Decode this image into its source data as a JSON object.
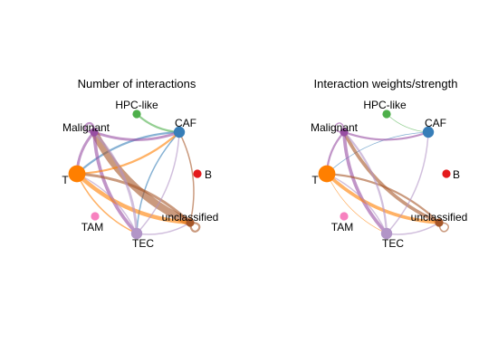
{
  "panels": [
    {
      "title": "Number of interactions",
      "nodes": [
        {
          "id": "hpc",
          "label": "HPC-like",
          "color": "#4daf4a",
          "size": 1
        },
        {
          "id": "caf",
          "label": "CAF",
          "color": "#377eb8",
          "size": 2
        },
        {
          "id": "mal",
          "label": "Malignant",
          "color": "#984ea3",
          "size": 1
        },
        {
          "id": "b",
          "label": "B",
          "color": "#e41a1c",
          "size": 1
        },
        {
          "id": "t",
          "label": "T",
          "color": "#ff7f00",
          "size": 4
        },
        {
          "id": "uncl",
          "label": "unclassified",
          "color": "#a65628",
          "size": 1
        },
        {
          "id": "tam",
          "label": "TAM",
          "color": "#f781bf",
          "size": 1
        },
        {
          "id": "tec",
          "label": "TEC",
          "color": "#b295c7",
          "size": 2
        }
      ],
      "edges": [
        {
          "from": "hpc",
          "to": "caf",
          "weight": 3,
          "color": "#4daf4a"
        },
        {
          "from": "caf",
          "to": "t",
          "weight": 3,
          "color": "#377eb8"
        },
        {
          "from": "caf",
          "to": "tec",
          "weight": 2,
          "color": "#377eb8"
        },
        {
          "from": "mal",
          "to": "caf",
          "weight": 4,
          "color": "#984ea3"
        },
        {
          "from": "mal",
          "to": "uncl",
          "weight": 11,
          "color": "#a65628"
        },
        {
          "from": "mal",
          "to": "tec",
          "weight": 5,
          "color": "#984ea3"
        },
        {
          "from": "mal",
          "to": "t",
          "weight": 4,
          "color": "#984ea3"
        },
        {
          "from": "t",
          "to": "caf",
          "weight": 3,
          "color": "#ff7f00"
        },
        {
          "from": "t",
          "to": "uncl",
          "weight": 6,
          "color": "#ff7f00"
        },
        {
          "from": "t",
          "to": "tec",
          "weight": 2,
          "color": "#ff7f00"
        },
        {
          "from": "uncl",
          "to": "t",
          "weight": 4,
          "color": "#a65628"
        },
        {
          "from": "uncl",
          "to": "caf",
          "weight": 2,
          "color": "#a65628"
        },
        {
          "from": "tec",
          "to": "caf",
          "weight": 2,
          "color": "#b295c7"
        },
        {
          "from": "tec",
          "to": "mal",
          "weight": 4,
          "color": "#b295c7"
        },
        {
          "from": "tec",
          "to": "t",
          "weight": 2,
          "color": "#b295c7"
        },
        {
          "from": "tec",
          "to": "uncl",
          "weight": 2,
          "color": "#b295c7"
        },
        {
          "from": "mal",
          "to": "mal",
          "weight": 3,
          "color": "#984ea3"
        },
        {
          "from": "uncl",
          "to": "uncl",
          "weight": 3,
          "color": "#a65628"
        }
      ]
    },
    {
      "title": "Interaction weights/strength",
      "nodes": [
        {
          "id": "hpc",
          "label": "HPC-like",
          "color": "#4daf4a",
          "size": 1
        },
        {
          "id": "caf",
          "label": "CAF",
          "color": "#377eb8",
          "size": 2
        },
        {
          "id": "mal",
          "label": "Malignant",
          "color": "#984ea3",
          "size": 1
        },
        {
          "id": "b",
          "label": "B",
          "color": "#e41a1c",
          "size": 1
        },
        {
          "id": "t",
          "label": "T",
          "color": "#ff7f00",
          "size": 4
        },
        {
          "id": "uncl",
          "label": "unclassified",
          "color": "#a65628",
          "size": 1
        },
        {
          "id": "tam",
          "label": "TAM",
          "color": "#f781bf",
          "size": 1
        },
        {
          "id": "tec",
          "label": "TEC",
          "color": "#b295c7",
          "size": 2
        }
      ],
      "edges": [
        {
          "from": "hpc",
          "to": "caf",
          "weight": 1,
          "color": "#4daf4a"
        },
        {
          "from": "caf",
          "to": "t",
          "weight": 1,
          "color": "#377eb8"
        },
        {
          "from": "mal",
          "to": "caf",
          "weight": 3,
          "color": "#984ea3"
        },
        {
          "from": "mal",
          "to": "uncl",
          "weight": 5,
          "color": "#a65628"
        },
        {
          "from": "mal",
          "to": "tec",
          "weight": 5,
          "color": "#984ea3"
        },
        {
          "from": "mal",
          "to": "t",
          "weight": 3,
          "color": "#984ea3"
        },
        {
          "from": "t",
          "to": "uncl",
          "weight": 5,
          "color": "#ff7f00"
        },
        {
          "from": "t",
          "to": "tec",
          "weight": 1,
          "color": "#ff7f00"
        },
        {
          "from": "uncl",
          "to": "t",
          "weight": 3,
          "color": "#a65628"
        },
        {
          "from": "tec",
          "to": "caf",
          "weight": 2,
          "color": "#b295c7"
        },
        {
          "from": "tec",
          "to": "mal",
          "weight": 3,
          "color": "#b295c7"
        },
        {
          "from": "tec",
          "to": "t",
          "weight": 2,
          "color": "#b295c7"
        },
        {
          "from": "tec",
          "to": "uncl",
          "weight": 2,
          "color": "#b295c7"
        },
        {
          "from": "mal",
          "to": "mal",
          "weight": 2,
          "color": "#984ea3"
        },
        {
          "from": "uncl",
          "to": "uncl",
          "weight": 2,
          "color": "#a65628"
        }
      ]
    }
  ]
}
